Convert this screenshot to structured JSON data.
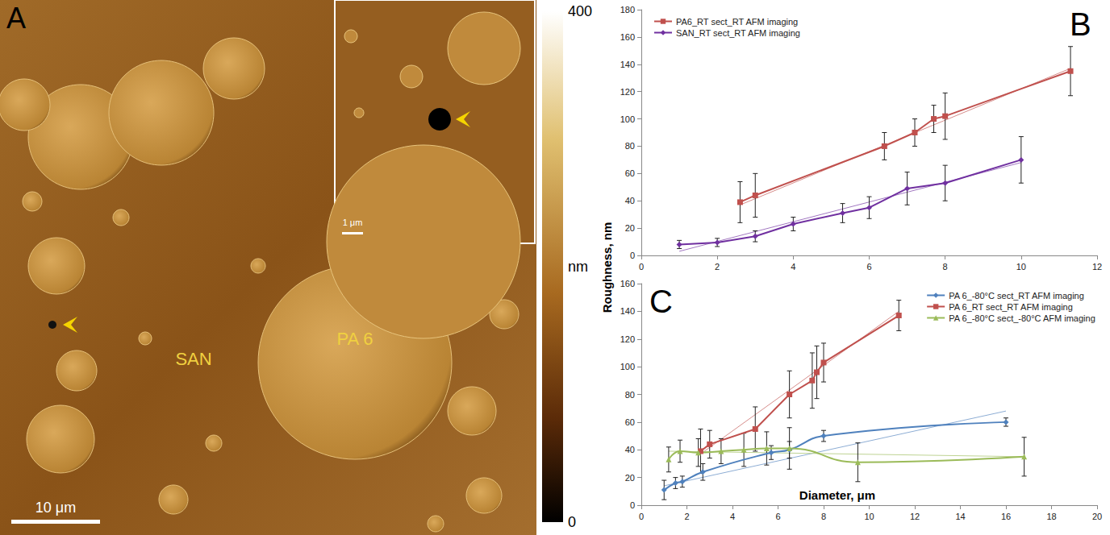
{
  "image_panel": {
    "panel_label": "A",
    "labels": [
      "SAN",
      "PA 6"
    ],
    "scale_bar": "10 μm",
    "inset_scale_bar": "1 μm",
    "colorbar": {
      "range": [
        0,
        400
      ],
      "ticks": [
        0,
        400
      ],
      "label": "nm"
    }
  },
  "ylabel": "Roughness, nm",
  "chart_data": [
    {
      "type": "line",
      "panel_label": "B",
      "grid": false,
      "legend": "top-left",
      "xlim": [
        0,
        12
      ],
      "xticks": [
        0,
        2,
        4,
        6,
        8,
        10,
        12
      ],
      "ylim": [
        0,
        180
      ],
      "yticks": [
        0,
        20,
        40,
        60,
        80,
        100,
        120,
        140,
        160,
        180
      ],
      "series": [
        {
          "name": "PA6_RT sect_RT AFM imaging",
          "color": "#c0504d",
          "marker": "square",
          "line_style": "straight",
          "x": [
            2.6,
            3,
            6.4,
            7.2,
            7.7,
            8,
            11.3
          ],
          "values": [
            39,
            44,
            80,
            90,
            100,
            102,
            135
          ],
          "errors": [
            15,
            16,
            10,
            10,
            10,
            17,
            18
          ],
          "trend": {
            "x": [
              2.6,
              11.3
            ],
            "values": [
              37,
              137
            ]
          }
        },
        {
          "name": "SAN_RT sect_RT AFM imaging",
          "color": "#7030a0",
          "marker": "diamond",
          "line_style": "straight",
          "x": [
            1,
            2,
            3,
            4,
            5.3,
            6,
            7,
            8,
            10
          ],
          "values": [
            8,
            9.5,
            14,
            23,
            31,
            35,
            49,
            53,
            70
          ],
          "errors": [
            3,
            3,
            4,
            5,
            7,
            8,
            12,
            13,
            17
          ],
          "trend": {
            "x": [
              1,
              10
            ],
            "values": [
              3,
              68
            ]
          }
        }
      ]
    },
    {
      "type": "line",
      "panel_label": "C",
      "grid": false,
      "legend": "top-right",
      "xlabel": "Diameter, μm",
      "xlim": [
        0,
        20
      ],
      "xticks": [
        0,
        2,
        4,
        6,
        8,
        10,
        12,
        14,
        16,
        18,
        20
      ],
      "ylim": [
        0,
        160
      ],
      "yticks": [
        0,
        20,
        40,
        60,
        80,
        100,
        120,
        140,
        160
      ],
      "series": [
        {
          "name": "PA 6_-80°C sect_RT AFM imaging",
          "color": "#4f81bd",
          "marker": "diamond",
          "line_style": "curved",
          "x": [
            1,
            1.5,
            1.8,
            2.7,
            5.7,
            6.5,
            8,
            16
          ],
          "values": [
            11,
            16,
            17,
            24,
            38,
            40,
            50,
            60
          ],
          "errors": [
            7,
            4,
            4,
            6,
            5,
            6,
            4,
            3
          ],
          "trend": {
            "x": [
              1,
              16
            ],
            "values": [
              14,
              68
            ]
          }
        },
        {
          "name": "PA 6_RT sect_RT AFM imaging",
          "color": "#c0504d",
          "marker": "square",
          "line_style": "straight",
          "x": [
            2.6,
            3,
            5,
            6.5,
            7.5,
            7.7,
            8,
            11.3
          ],
          "values": [
            39,
            44,
            55,
            80,
            90,
            96,
            103,
            137
          ],
          "errors": [
            16,
            10,
            16,
            17,
            20,
            19,
            14,
            11
          ],
          "trend": {
            "x": [
              2.6,
              11.3
            ],
            "values": [
              37,
              140
            ]
          }
        },
        {
          "name": "PA 6_-80°C sect_-80°C AFM imaging",
          "color": "#9bbb59",
          "marker": "triangle",
          "line_style": "curved",
          "x": [
            1.2,
            1.7,
            2.5,
            3.5,
            4.5,
            5.5,
            6.5,
            9.5,
            16.8
          ],
          "values": [
            33,
            39,
            38,
            39,
            40,
            41,
            41,
            31,
            35
          ],
          "errors": [
            9,
            8,
            10,
            9,
            12,
            12,
            15,
            14,
            14
          ],
          "trend": {
            "x": [
              1.2,
              16.8
            ],
            "values": [
              39,
              35
            ]
          }
        }
      ]
    }
  ]
}
